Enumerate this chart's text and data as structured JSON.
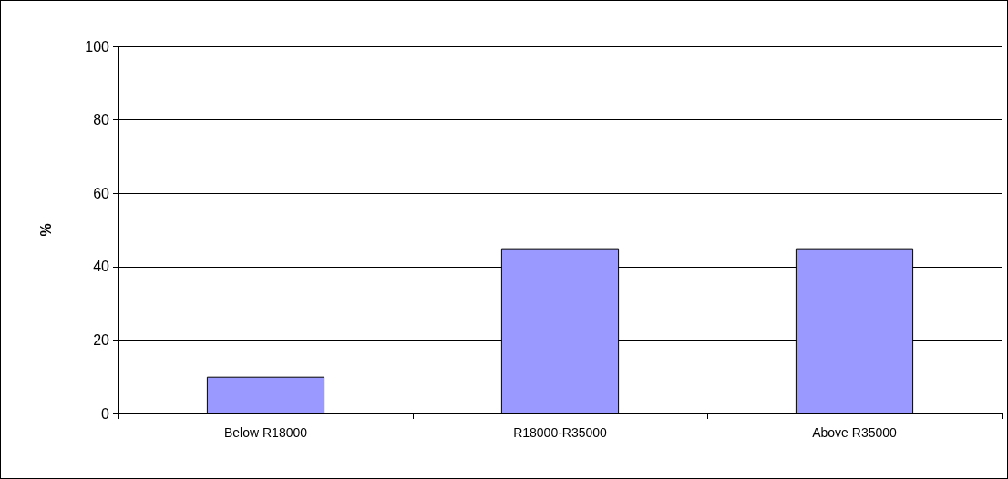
{
  "chart_data": {
    "type": "bar",
    "ylabel": "%",
    "categories": [
      "Below R18000",
      "R18000-R35000",
      "Above R35000"
    ],
    "values": [
      10,
      45,
      45
    ],
    "color": "#9999ff",
    "ylim": [
      0,
      100
    ],
    "yticks": [
      0,
      20,
      40,
      60,
      80,
      100
    ],
    "grid": "y"
  }
}
